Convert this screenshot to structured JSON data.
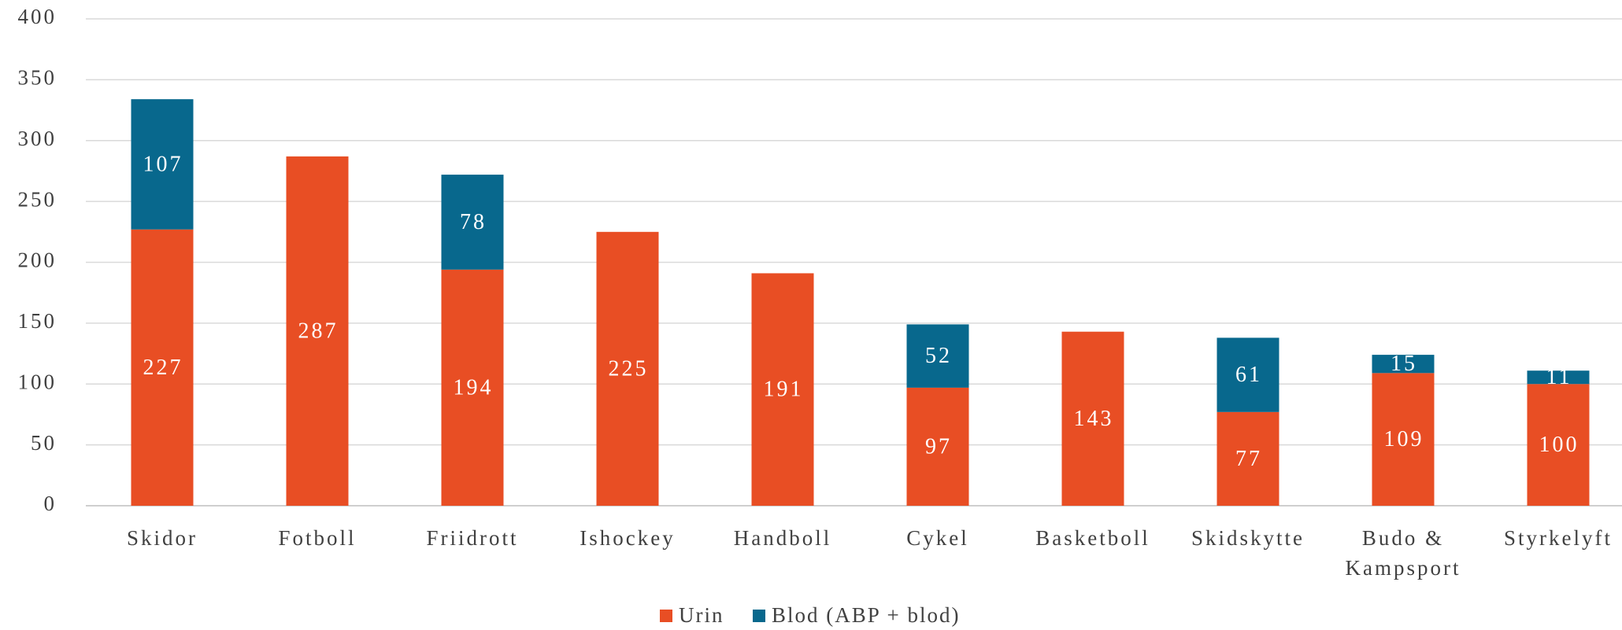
{
  "chart_data": {
    "type": "stacked_bar",
    "categories": [
      "Skidor",
      "Fotboll",
      "Friidrott",
      "Ishockey",
      "Handboll",
      "Cykel",
      "Basketboll",
      "Skidskytte",
      "Budo & Kampsport",
      "Styrkelyft"
    ],
    "series": [
      {
        "name": "Urin",
        "color": "#e84e24",
        "values": [
          227,
          287,
          194,
          225,
          191,
          97,
          143,
          77,
          109,
          100
        ]
      },
      {
        "name": "Blod (ABP + blod)",
        "color": "#08688d",
        "values": [
          107,
          null,
          78,
          null,
          null,
          52,
          null,
          61,
          15,
          11
        ]
      }
    ],
    "ylim": [
      0,
      400
    ],
    "yticks": [
      0,
      50,
      100,
      150,
      200,
      250,
      300,
      350,
      400
    ],
    "grid": true,
    "legend": "bottom"
  }
}
